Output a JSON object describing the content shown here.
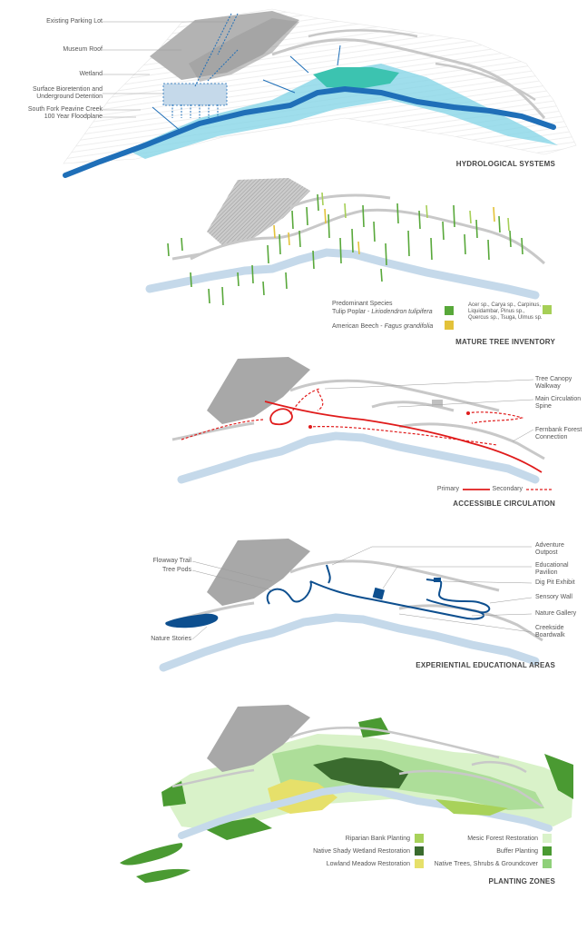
{
  "colors": {
    "gray_building": "#a8a8a8",
    "light_path": "#c8c8c8",
    "creek_dark": "#1f6fb8",
    "floodplain": "#7fd3e6",
    "wetland": "#3cc3b0",
    "river_pale": "#c5d9ea",
    "tree_green": "#58a83a",
    "tree_yellow": "#e3c23a",
    "tree_lime": "#a6cf57",
    "primary_red": "#e01b1b",
    "edu_blue": "#0d4f8f",
    "riparian": "#a8d25a",
    "shady_wetland": "#3a6b2e",
    "meadow": "#e6e06a",
    "mesic": "#d9f2c9",
    "buffer": "#4a9a32",
    "native_trees": "#8fd07a"
  },
  "panels": {
    "hydro": {
      "title": "HYDROLOGICAL SYSTEMS",
      "labels": {
        "parking": "Existing Parking Lot",
        "roof": "Museum Roof",
        "wetland": "Wetland",
        "bio1": "Surface Bioretention and",
        "bio2": "Underground Detention",
        "creek": "South Fork Peavine Creek",
        "flood": "100 Year Floodplane"
      }
    },
    "trees": {
      "title": "MATURE TREE INVENTORY",
      "legend": {
        "header": "Predominant Species",
        "tulip_common": "Tulip Poplar - ",
        "tulip_latin": "Liriodendron tulipifera",
        "beech_common": "American Beech - ",
        "beech_latin": "Fagus grandifolia",
        "others_1": "Acer sp., Carya sp., Carpinus,",
        "others_2": "Liquidambar, Pinus sp.,",
        "others_3": "Quercus sp., Tsuga, Ulmus sp."
      }
    },
    "circulation": {
      "title": "ACCESSIBLE CIRCULATION",
      "labels": {
        "canopy1": "Tree Canopy",
        "canopy2": "Walkway",
        "spine1": "Main Circulation",
        "spine2": "Spine",
        "fern1": "Fernbank Forest",
        "fern2": "Connection"
      },
      "legend": {
        "primary": "Primary",
        "secondary": "Secondary"
      }
    },
    "education": {
      "title": "EXPERIENTIAL EDUCATIONAL AREAS",
      "labels": {
        "flowway": "Flowway Trail",
        "pods": "Tree Pods",
        "stories": "Nature Stories",
        "adv1": "Adventure",
        "adv2": "Outpost",
        "pav1": "Educational",
        "pav2": "Pavilion",
        "dig": "Dig Pit Exhibit",
        "sensory": "Sensory Wall",
        "gallery": "Nature Gallery",
        "creekside1": "Creekside",
        "creekside2": "Boardwalk"
      }
    },
    "planting": {
      "title": "PLANTING ZONES",
      "legend": {
        "riparian": "Riparian Bank Planting",
        "shady": "Native Shady Wetland Restoration",
        "meadow": "Lowland Meadow Restoration",
        "mesic": "Mesic Forest Restoration",
        "buffer": "Buffer Planting",
        "native": "Native Trees, Shrubs & Groundcover"
      }
    }
  }
}
